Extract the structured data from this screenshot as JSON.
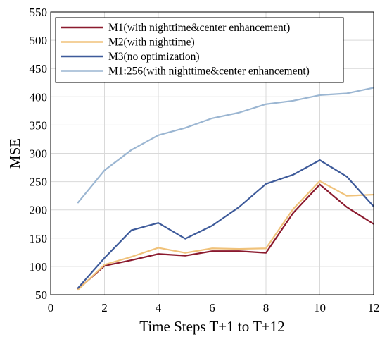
{
  "chart_data": {
    "type": "line",
    "xlabel": "Time Steps T+1 to T+12",
    "ylabel": "MSE",
    "xlim": [
      0,
      12
    ],
    "ylim": [
      50,
      550
    ],
    "xticks": [
      0,
      2,
      4,
      6,
      8,
      10,
      12
    ],
    "yticks": [
      50,
      100,
      150,
      200,
      250,
      300,
      350,
      400,
      450,
      500,
      550
    ],
    "grid": true,
    "legend_position": "top-left",
    "x": [
      1,
      2,
      3,
      4,
      5,
      6,
      7,
      8,
      9,
      10,
      11,
      12
    ],
    "series": [
      {
        "name": "M1(with nighttime&center enhancement)",
        "color": "#8b1a2e",
        "values": [
          59,
          101,
          111,
          122,
          119,
          127,
          127,
          124,
          194,
          245,
          205,
          175
        ]
      },
      {
        "name": "M2(with nighttime)",
        "color": "#f0c27a",
        "values": [
          58,
          103,
          117,
          133,
          124,
          132,
          131,
          132,
          201,
          251,
          225,
          227
        ]
      },
      {
        "name": "M3(no optimization)",
        "color": "#3d5a9a",
        "values": [
          61,
          115,
          164,
          177,
          149,
          172,
          205,
          246,
          262,
          288,
          259,
          206
        ]
      },
      {
        "name": "M1:256(with nighttime&center enhancement)",
        "color": "#9bb6d2",
        "values": [
          212,
          270,
          306,
          332,
          345,
          362,
          372,
          387,
          393,
          403,
          406,
          416
        ]
      }
    ]
  }
}
